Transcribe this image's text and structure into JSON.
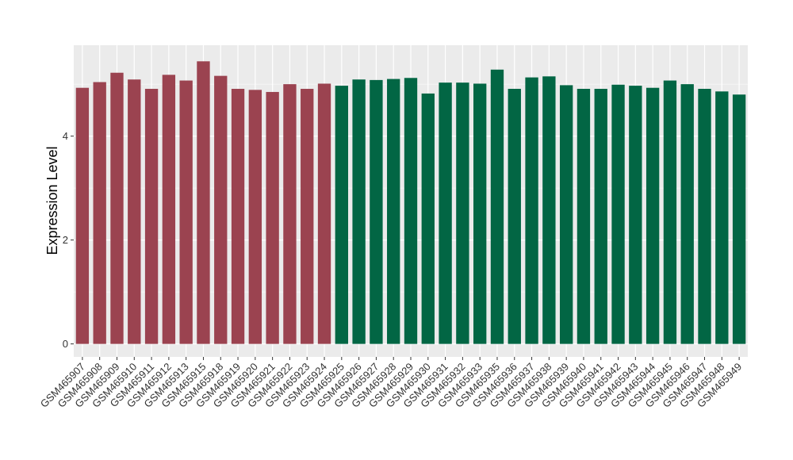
{
  "chart_data": {
    "type": "bar",
    "ylabel": "Expression Level",
    "xlabel": "",
    "ylim": [
      -0.25,
      5.75
    ],
    "yticks": [
      0,
      2,
      4
    ],
    "grid": true,
    "categories": [
      "GSM465907",
      "GSM465908",
      "GSM465909",
      "GSM465910",
      "GSM465911",
      "GSM465912",
      "GSM465913",
      "GSM465915",
      "GSM465918",
      "GSM465919",
      "GSM465920",
      "GSM465921",
      "GSM465922",
      "GSM465923",
      "GSM465924",
      "GSM465925",
      "GSM465926",
      "GSM465927",
      "GSM465928",
      "GSM465929",
      "GSM465930",
      "GSM465931",
      "GSM465932",
      "GSM465933",
      "GSM465935",
      "GSM465936",
      "GSM465937",
      "GSM465938",
      "GSM465939",
      "GSM465940",
      "GSM465941",
      "GSM465942",
      "GSM465943",
      "GSM465944",
      "GSM465945",
      "GSM465946",
      "GSM465947",
      "GSM465948",
      "GSM465949"
    ],
    "values": [
      4.93,
      5.04,
      5.22,
      5.09,
      4.91,
      5.18,
      5.07,
      5.44,
      5.16,
      4.91,
      4.89,
      4.85,
      5.0,
      4.91,
      5.01,
      4.97,
      5.09,
      5.08,
      5.1,
      5.12,
      4.82,
      5.03,
      5.03,
      5.01,
      5.28,
      4.91,
      5.13,
      5.15,
      4.98,
      4.91,
      4.91,
      4.99,
      4.97,
      4.93,
      5.07,
      5.0,
      4.91,
      4.86,
      4.8
    ],
    "group_sizes": [
      15,
      24
    ],
    "colors": {
      "group1": "#9B4350",
      "group2": "#026644",
      "panel": "#EBEBEB",
      "grid": "#FFFFFF"
    }
  }
}
